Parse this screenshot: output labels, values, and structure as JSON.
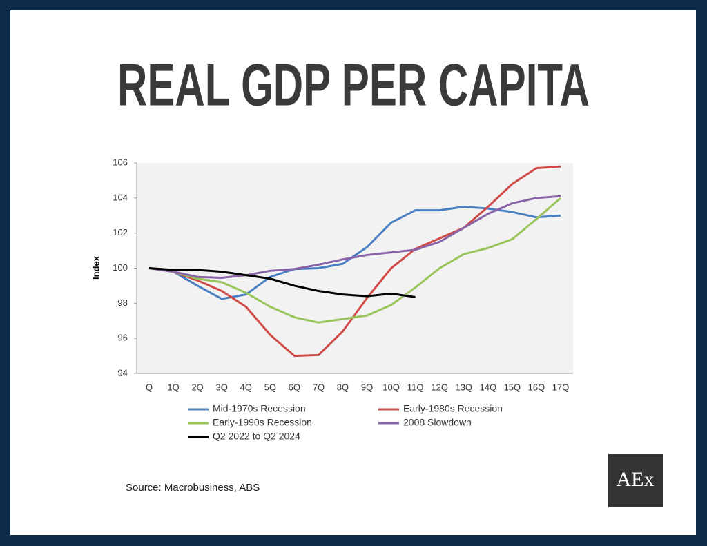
{
  "chart_data": {
    "type": "line",
    "title": "REAL GDP PER CAPITA",
    "y_label": "Index",
    "source": "Source: Macrobusiness, ABS",
    "logo": "AEx",
    "categories": [
      "Q",
      "1Q",
      "2Q",
      "3Q",
      "4Q",
      "5Q",
      "6Q",
      "7Q",
      "8Q",
      "9Q",
      "10Q",
      "11Q",
      "12Q",
      "13Q",
      "14Q",
      "15Q",
      "16Q",
      "17Q"
    ],
    "ylim": [
      94,
      106
    ],
    "yticks": [
      94,
      96,
      98,
      100,
      102,
      104,
      106
    ],
    "series": [
      {
        "name": "Mid-1970s Recession",
        "color": "#4a7fc1",
        "values": [
          100,
          99.8,
          99.0,
          98.25,
          98.5,
          99.5,
          99.95,
          100.0,
          100.25,
          101.2,
          102.6,
          103.3,
          103.3,
          103.5,
          103.4,
          103.2,
          102.9,
          103.0
        ]
      },
      {
        "name": "Early-1980s Recession",
        "color": "#cf4a46",
        "values": [
          100,
          99.8,
          99.3,
          98.7,
          97.8,
          96.2,
          95.0,
          95.05,
          96.4,
          98.3,
          100.0,
          101.1,
          101.7,
          102.3,
          103.5,
          104.8,
          105.7,
          105.8
        ]
      },
      {
        "name": "Early-1990s Recession",
        "color": "#98c45a",
        "values": [
          100,
          99.8,
          99.4,
          99.2,
          98.6,
          97.8,
          97.2,
          96.9,
          97.1,
          97.3,
          97.9,
          98.9,
          100.0,
          100.8,
          101.15,
          101.65,
          102.8,
          104.0
        ]
      },
      {
        "name": "2008 Slowdown",
        "color": "#8a64a8",
        "values": [
          100,
          99.8,
          99.5,
          99.45,
          99.6,
          99.85,
          99.95,
          100.2,
          100.5,
          100.75,
          100.9,
          101.05,
          101.5,
          102.3,
          103.1,
          103.7,
          104.0,
          104.1
        ]
      },
      {
        "name": "Q2 2022 to Q2 2024",
        "color": "#000000",
        "values": [
          100,
          99.9,
          99.9,
          99.8,
          99.6,
          99.4,
          99.0,
          98.7,
          98.5,
          98.4,
          98.55,
          98.35,
          null,
          null,
          null,
          null,
          null,
          null
        ]
      }
    ]
  }
}
